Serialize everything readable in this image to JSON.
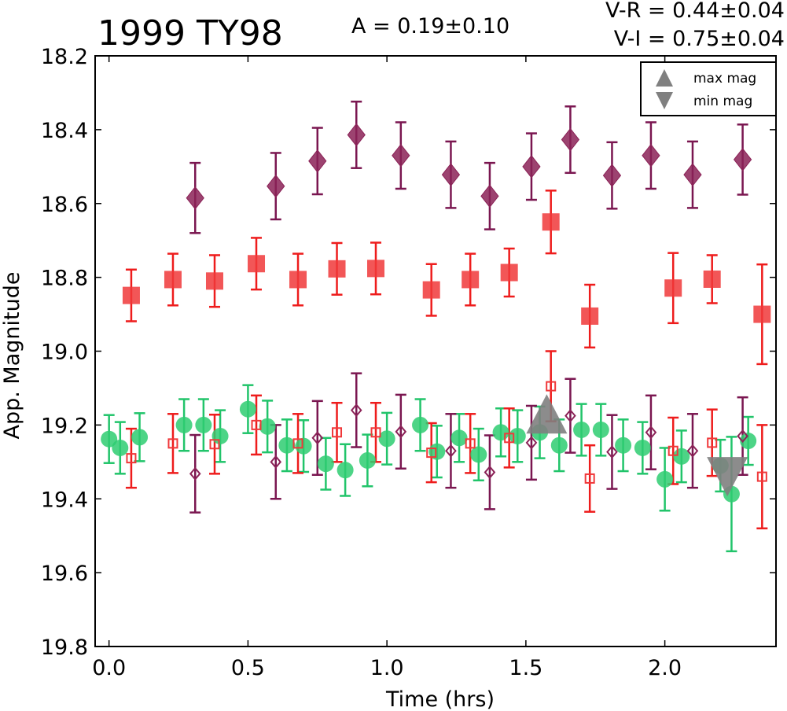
{
  "chart_data": {
    "type": "scatter",
    "title": "1999 TY98",
    "annotations": {
      "amplitude": "A  = 0.19±0.10",
      "v_r": "V-R = 0.44±0.04",
      "v_i": "V-I  = 0.75±0.04"
    },
    "xlabel": "Time (hrs)",
    "ylabel": "App. Magnitude",
    "xlim": [
      -0.05,
      2.4
    ],
    "ylim": [
      19.8,
      18.2
    ],
    "y_inverted": true,
    "x_ticks": [
      0.0,
      0.5,
      1.0,
      1.5,
      2.0
    ],
    "x_tick_labels": [
      "0.0",
      "0.5",
      "1.0",
      "1.5",
      "2.0"
    ],
    "y_ticks": [
      18.2,
      18.4,
      18.6,
      18.8,
      19.0,
      19.2,
      19.4,
      19.6,
      19.8
    ],
    "y_tick_labels": [
      "18.2",
      "18.4",
      "18.6",
      "18.8",
      "19.0",
      "19.2",
      "19.4",
      "19.6",
      "19.8"
    ],
    "grid": false,
    "legend": {
      "position": "top-right",
      "entries": [
        {
          "label": "max mag",
          "marker": "triangle-up",
          "color": "#808080"
        },
        {
          "label": "min mag",
          "marker": "triangle-down",
          "color": "#808080"
        }
      ]
    },
    "series": [
      {
        "marker": "diamond-filled",
        "color": "#8b2257",
        "points": [
          [
            0.31,
            18.585,
            0.095
          ],
          [
            0.6,
            18.553,
            0.09
          ],
          [
            0.75,
            18.485,
            0.09
          ],
          [
            0.89,
            18.414,
            0.09
          ],
          [
            1.05,
            18.47,
            0.09
          ],
          [
            1.23,
            18.522,
            0.09
          ],
          [
            1.37,
            18.58,
            0.09
          ],
          [
            1.52,
            18.5,
            0.09
          ],
          [
            1.66,
            18.427,
            0.09
          ],
          [
            1.81,
            18.524,
            0.09
          ],
          [
            1.95,
            18.47,
            0.09
          ],
          [
            2.1,
            18.522,
            0.09
          ],
          [
            2.28,
            18.481,
            0.095
          ]
        ]
      },
      {
        "marker": "square-filled",
        "color": "#f0383a",
        "points": [
          [
            0.08,
            18.849,
            0.07
          ],
          [
            0.23,
            18.806,
            0.07
          ],
          [
            0.38,
            18.81,
            0.07
          ],
          [
            0.53,
            18.763,
            0.07
          ],
          [
            0.68,
            18.806,
            0.07
          ],
          [
            0.82,
            18.777,
            0.07
          ],
          [
            0.96,
            18.776,
            0.07
          ],
          [
            1.16,
            18.834,
            0.07
          ],
          [
            1.3,
            18.806,
            0.07
          ],
          [
            1.44,
            18.787,
            0.065
          ],
          [
            1.59,
            18.65,
            0.085
          ],
          [
            1.73,
            18.905,
            0.085
          ],
          [
            2.03,
            18.829,
            0.095
          ],
          [
            2.17,
            18.805,
            0.065
          ],
          [
            2.35,
            18.9,
            0.135
          ]
        ]
      },
      {
        "marker": "circle-filled",
        "color": "#2ecc71",
        "points": [
          [
            0.0,
            19.238,
            0.065
          ],
          [
            0.04,
            19.262,
            0.07
          ],
          [
            0.11,
            19.233,
            0.065
          ],
          [
            0.27,
            19.2,
            0.07
          ],
          [
            0.34,
            19.2,
            0.07
          ],
          [
            0.4,
            19.23,
            0.07
          ],
          [
            0.5,
            19.157,
            0.065
          ],
          [
            0.57,
            19.204,
            0.07
          ],
          [
            0.64,
            19.255,
            0.07
          ],
          [
            0.7,
            19.257,
            0.07
          ],
          [
            0.78,
            19.305,
            0.07
          ],
          [
            0.85,
            19.322,
            0.07
          ],
          [
            0.93,
            19.296,
            0.07
          ],
          [
            1.0,
            19.237,
            0.07
          ],
          [
            1.12,
            19.2,
            0.07
          ],
          [
            1.18,
            19.272,
            0.07
          ],
          [
            1.26,
            19.235,
            0.065
          ],
          [
            1.33,
            19.28,
            0.07
          ],
          [
            1.41,
            19.22,
            0.065
          ],
          [
            1.47,
            19.23,
            0.07
          ],
          [
            1.55,
            19.22,
            0.07
          ],
          [
            1.62,
            19.255,
            0.07
          ],
          [
            1.7,
            19.213,
            0.07
          ],
          [
            1.77,
            19.213,
            0.07
          ],
          [
            1.85,
            19.255,
            0.07
          ],
          [
            1.92,
            19.262,
            0.07
          ],
          [
            2.0,
            19.347,
            0.085
          ],
          [
            2.06,
            19.285,
            0.07
          ],
          [
            2.2,
            19.31,
            0.07
          ],
          [
            2.24,
            19.387,
            0.155
          ],
          [
            2.3,
            19.243,
            0.065
          ]
        ]
      },
      {
        "marker": "square-open",
        "color": "#f0383a",
        "points": [
          [
            0.08,
            19.29,
            0.08
          ],
          [
            0.23,
            19.25,
            0.08
          ],
          [
            0.38,
            19.252,
            0.08
          ],
          [
            0.53,
            19.2,
            0.08
          ],
          [
            0.68,
            19.25,
            0.08
          ],
          [
            0.82,
            19.22,
            0.08
          ],
          [
            0.96,
            19.22,
            0.08
          ],
          [
            1.16,
            19.275,
            0.08
          ],
          [
            1.3,
            19.25,
            0.08
          ],
          [
            1.44,
            19.235,
            0.08
          ],
          [
            1.59,
            19.095,
            0.095
          ],
          [
            1.73,
            19.345,
            0.09
          ],
          [
            2.03,
            19.27,
            0.09
          ],
          [
            2.17,
            19.248,
            0.09
          ],
          [
            2.35,
            19.34,
            0.14
          ]
        ]
      },
      {
        "marker": "diamond-open",
        "color": "#8b2257",
        "points": [
          [
            0.31,
            19.332,
            0.105
          ],
          [
            0.6,
            19.3,
            0.1
          ],
          [
            0.75,
            19.235,
            0.1
          ],
          [
            0.89,
            19.16,
            0.1
          ],
          [
            1.05,
            19.218,
            0.1
          ],
          [
            1.23,
            19.27,
            0.1
          ],
          [
            1.37,
            19.328,
            0.1
          ],
          [
            1.52,
            19.248,
            0.1
          ],
          [
            1.66,
            19.175,
            0.1
          ],
          [
            1.81,
            19.273,
            0.1
          ],
          [
            1.95,
            19.22,
            0.1
          ],
          [
            2.1,
            19.27,
            0.1
          ],
          [
            2.28,
            19.23,
            0.105
          ]
        ]
      }
    ],
    "extrema": [
      {
        "label": "max mag",
        "x": 1.575,
        "y": 19.17,
        "marker": "triangle-up",
        "color": "#808080"
      },
      {
        "label": "min mag",
        "x": 2.225,
        "y": 19.34,
        "marker": "triangle-down",
        "color": "#808080"
      }
    ]
  }
}
